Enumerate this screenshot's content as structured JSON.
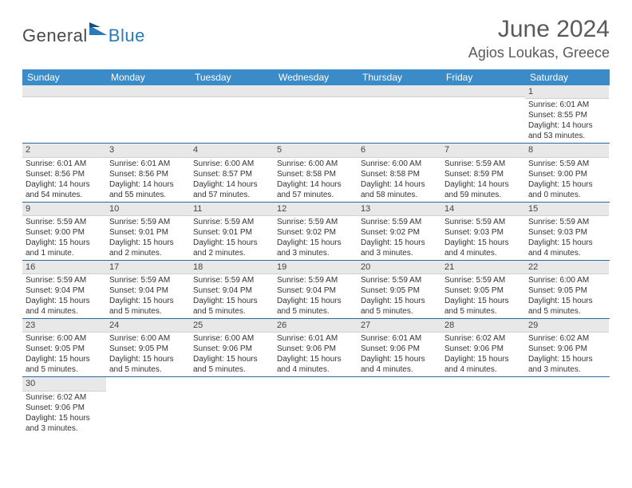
{
  "brand": {
    "text_general": "General",
    "text_blue": "Blue"
  },
  "title": "June 2024",
  "location": "Agios Loukas, Greece",
  "colors": {
    "header_bg": "#3b8bc9",
    "number_bar_bg": "#e8e8e8",
    "row_border": "#2a6aa0",
    "text": "#333333",
    "title_text": "#5a5a5a"
  },
  "weekdays": [
    "Sunday",
    "Monday",
    "Tuesday",
    "Wednesday",
    "Thursday",
    "Friday",
    "Saturday"
  ],
  "weeks": [
    [
      {
        "n": "",
        "sr": "",
        "ss": "",
        "dl": ""
      },
      {
        "n": "",
        "sr": "",
        "ss": "",
        "dl": ""
      },
      {
        "n": "",
        "sr": "",
        "ss": "",
        "dl": ""
      },
      {
        "n": "",
        "sr": "",
        "ss": "",
        "dl": ""
      },
      {
        "n": "",
        "sr": "",
        "ss": "",
        "dl": ""
      },
      {
        "n": "",
        "sr": "",
        "ss": "",
        "dl": ""
      },
      {
        "n": "1",
        "sr": "Sunrise: 6:01 AM",
        "ss": "Sunset: 8:55 PM",
        "dl": "Daylight: 14 hours and 53 minutes."
      }
    ],
    [
      {
        "n": "2",
        "sr": "Sunrise: 6:01 AM",
        "ss": "Sunset: 8:56 PM",
        "dl": "Daylight: 14 hours and 54 minutes."
      },
      {
        "n": "3",
        "sr": "Sunrise: 6:01 AM",
        "ss": "Sunset: 8:56 PM",
        "dl": "Daylight: 14 hours and 55 minutes."
      },
      {
        "n": "4",
        "sr": "Sunrise: 6:00 AM",
        "ss": "Sunset: 8:57 PM",
        "dl": "Daylight: 14 hours and 57 minutes."
      },
      {
        "n": "5",
        "sr": "Sunrise: 6:00 AM",
        "ss": "Sunset: 8:58 PM",
        "dl": "Daylight: 14 hours and 57 minutes."
      },
      {
        "n": "6",
        "sr": "Sunrise: 6:00 AM",
        "ss": "Sunset: 8:58 PM",
        "dl": "Daylight: 14 hours and 58 minutes."
      },
      {
        "n": "7",
        "sr": "Sunrise: 5:59 AM",
        "ss": "Sunset: 8:59 PM",
        "dl": "Daylight: 14 hours and 59 minutes."
      },
      {
        "n": "8",
        "sr": "Sunrise: 5:59 AM",
        "ss": "Sunset: 9:00 PM",
        "dl": "Daylight: 15 hours and 0 minutes."
      }
    ],
    [
      {
        "n": "9",
        "sr": "Sunrise: 5:59 AM",
        "ss": "Sunset: 9:00 PM",
        "dl": "Daylight: 15 hours and 1 minute."
      },
      {
        "n": "10",
        "sr": "Sunrise: 5:59 AM",
        "ss": "Sunset: 9:01 PM",
        "dl": "Daylight: 15 hours and 2 minutes."
      },
      {
        "n": "11",
        "sr": "Sunrise: 5:59 AM",
        "ss": "Sunset: 9:01 PM",
        "dl": "Daylight: 15 hours and 2 minutes."
      },
      {
        "n": "12",
        "sr": "Sunrise: 5:59 AM",
        "ss": "Sunset: 9:02 PM",
        "dl": "Daylight: 15 hours and 3 minutes."
      },
      {
        "n": "13",
        "sr": "Sunrise: 5:59 AM",
        "ss": "Sunset: 9:02 PM",
        "dl": "Daylight: 15 hours and 3 minutes."
      },
      {
        "n": "14",
        "sr": "Sunrise: 5:59 AM",
        "ss": "Sunset: 9:03 PM",
        "dl": "Daylight: 15 hours and 4 minutes."
      },
      {
        "n": "15",
        "sr": "Sunrise: 5:59 AM",
        "ss": "Sunset: 9:03 PM",
        "dl": "Daylight: 15 hours and 4 minutes."
      }
    ],
    [
      {
        "n": "16",
        "sr": "Sunrise: 5:59 AM",
        "ss": "Sunset: 9:04 PM",
        "dl": "Daylight: 15 hours and 4 minutes."
      },
      {
        "n": "17",
        "sr": "Sunrise: 5:59 AM",
        "ss": "Sunset: 9:04 PM",
        "dl": "Daylight: 15 hours and 5 minutes."
      },
      {
        "n": "18",
        "sr": "Sunrise: 5:59 AM",
        "ss": "Sunset: 9:04 PM",
        "dl": "Daylight: 15 hours and 5 minutes."
      },
      {
        "n": "19",
        "sr": "Sunrise: 5:59 AM",
        "ss": "Sunset: 9:04 PM",
        "dl": "Daylight: 15 hours and 5 minutes."
      },
      {
        "n": "20",
        "sr": "Sunrise: 5:59 AM",
        "ss": "Sunset: 9:05 PM",
        "dl": "Daylight: 15 hours and 5 minutes."
      },
      {
        "n": "21",
        "sr": "Sunrise: 5:59 AM",
        "ss": "Sunset: 9:05 PM",
        "dl": "Daylight: 15 hours and 5 minutes."
      },
      {
        "n": "22",
        "sr": "Sunrise: 6:00 AM",
        "ss": "Sunset: 9:05 PM",
        "dl": "Daylight: 15 hours and 5 minutes."
      }
    ],
    [
      {
        "n": "23",
        "sr": "Sunrise: 6:00 AM",
        "ss": "Sunset: 9:05 PM",
        "dl": "Daylight: 15 hours and 5 minutes."
      },
      {
        "n": "24",
        "sr": "Sunrise: 6:00 AM",
        "ss": "Sunset: 9:05 PM",
        "dl": "Daylight: 15 hours and 5 minutes."
      },
      {
        "n": "25",
        "sr": "Sunrise: 6:00 AM",
        "ss": "Sunset: 9:06 PM",
        "dl": "Daylight: 15 hours and 5 minutes."
      },
      {
        "n": "26",
        "sr": "Sunrise: 6:01 AM",
        "ss": "Sunset: 9:06 PM",
        "dl": "Daylight: 15 hours and 4 minutes."
      },
      {
        "n": "27",
        "sr": "Sunrise: 6:01 AM",
        "ss": "Sunset: 9:06 PM",
        "dl": "Daylight: 15 hours and 4 minutes."
      },
      {
        "n": "28",
        "sr": "Sunrise: 6:02 AM",
        "ss": "Sunset: 9:06 PM",
        "dl": "Daylight: 15 hours and 4 minutes."
      },
      {
        "n": "29",
        "sr": "Sunrise: 6:02 AM",
        "ss": "Sunset: 9:06 PM",
        "dl": "Daylight: 15 hours and 3 minutes."
      }
    ],
    [
      {
        "n": "30",
        "sr": "Sunrise: 6:02 AM",
        "ss": "Sunset: 9:06 PM",
        "dl": "Daylight: 15 hours and 3 minutes."
      },
      {
        "n": "",
        "sr": "",
        "ss": "",
        "dl": ""
      },
      {
        "n": "",
        "sr": "",
        "ss": "",
        "dl": ""
      },
      {
        "n": "",
        "sr": "",
        "ss": "",
        "dl": ""
      },
      {
        "n": "",
        "sr": "",
        "ss": "",
        "dl": ""
      },
      {
        "n": "",
        "sr": "",
        "ss": "",
        "dl": ""
      },
      {
        "n": "",
        "sr": "",
        "ss": "",
        "dl": ""
      }
    ]
  ]
}
